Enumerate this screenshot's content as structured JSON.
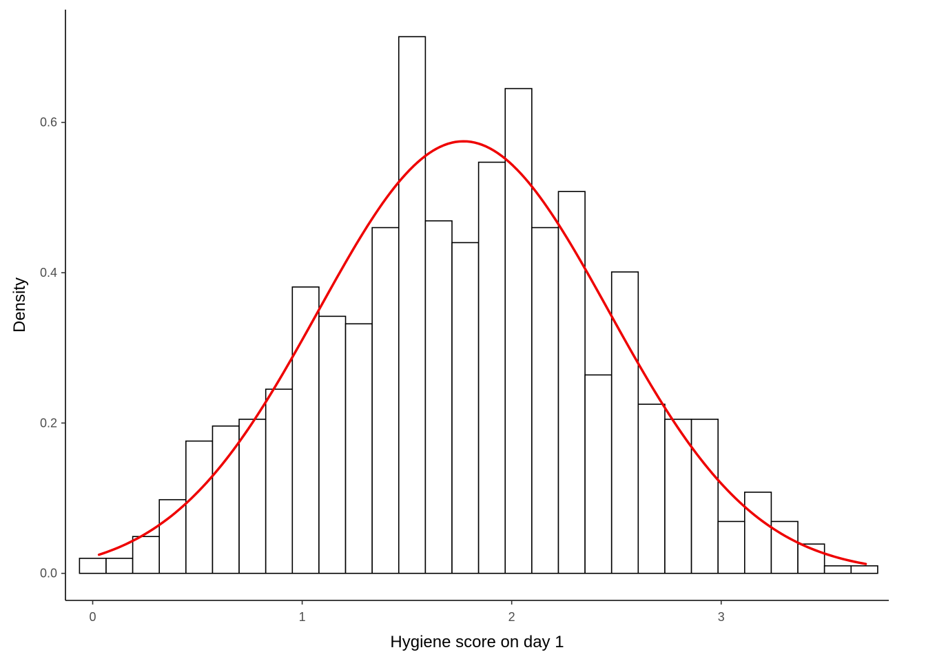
{
  "chart_data": {
    "type": "bar",
    "subtype": "histogram-with-density-curve",
    "xlabel": "Hygiene score on day 1",
    "ylabel": "Density",
    "xlim": [
      -0.13,
      3.8
    ],
    "ylim": [
      -0.036,
      0.75
    ],
    "x_ticks": [
      0,
      1,
      2,
      3
    ],
    "x_tick_labels": [
      "0",
      "1",
      "2",
      "3"
    ],
    "y_ticks": [
      0.0,
      0.2,
      0.4,
      0.6
    ],
    "y_tick_labels": [
      "0.0",
      "0.2",
      "0.4",
      "0.6"
    ],
    "bin_width": 0.127,
    "bins_start": -0.063,
    "values": [
      0.02,
      0.02,
      0.049,
      0.098,
      0.176,
      0.196,
      0.205,
      0.245,
      0.381,
      0.342,
      0.332,
      0.46,
      0.714,
      0.469,
      0.44,
      0.547,
      0.645,
      0.46,
      0.508,
      0.264,
      0.401,
      0.225,
      0.205,
      0.205,
      0.069,
      0.108,
      0.069,
      0.039,
      0.01,
      0.01
    ],
    "curve": {
      "color": "#ee0000",
      "mean": 1.77,
      "sd": 0.694,
      "x_start": 0.03,
      "x_end": 3.69
    },
    "grid": false,
    "legend": "none"
  }
}
